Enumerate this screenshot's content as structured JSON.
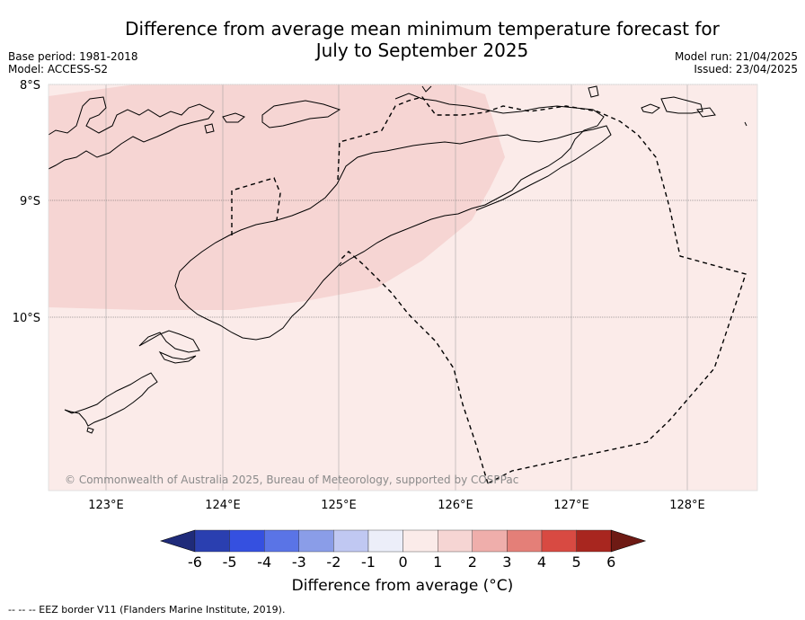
{
  "header": {
    "title_line1": "Difference from average mean minimum temperature forecast for",
    "title_line2": "July to September 2025",
    "base_period": "Base period: 1981-2018",
    "model": "Model: ACCESS-S2",
    "model_run": "Model run: 21/04/2025",
    "issued": "Issued: 23/04/2025"
  },
  "map": {
    "lat_labels": [
      "8°S",
      "9°S",
      "10°S"
    ],
    "lon_labels": [
      "123°E",
      "124°E",
      "125°E",
      "126°E",
      "127°E",
      "128°E"
    ],
    "copyright": "© Commonwealth of Australia 2025, Bureau of Meteorology, supported by COSPPac",
    "regions": [
      {
        "category": "1 to 2",
        "color": "#f6d5d3"
      },
      {
        "category": "0 to 1",
        "color": "#fbebe9"
      }
    ]
  },
  "colorbar": {
    "ticks": [
      "-6",
      "-5",
      "-4",
      "-3",
      "-2",
      "-1",
      "0",
      "1",
      "2",
      "3",
      "4",
      "5",
      "6"
    ],
    "colors": [
      "#1f2b7a",
      "#2a3fb0",
      "#3550e0",
      "#5a74e6",
      "#8a9de8",
      "#c0c8f2",
      "#eceef9",
      "#fbebe9",
      "#f6d5d3",
      "#efaeab",
      "#e47f78",
      "#d84a42",
      "#a8261f",
      "#6e1a14"
    ],
    "label": "Difference from average (°C)"
  },
  "footnote": "--  --  -- EEZ border V11 (Flanders Marine Institute, 2019)."
}
